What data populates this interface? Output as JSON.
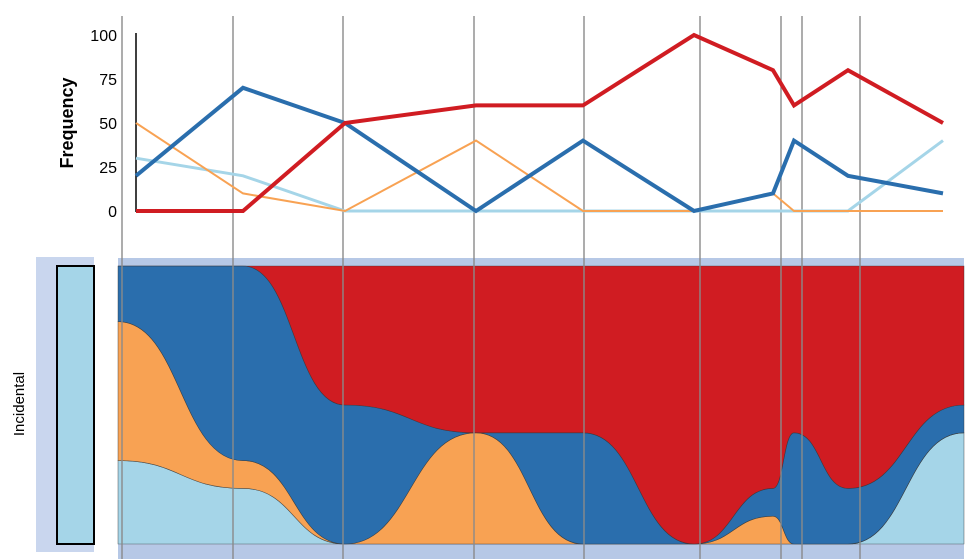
{
  "chart_data": {
    "type": "line",
    "ylabel": "Frequency",
    "yticks": [
      0,
      25,
      50,
      75,
      100
    ],
    "ylim": [
      0,
      100
    ],
    "x": [
      0,
      1,
      2,
      3,
      4,
      5,
      5.7,
      5.8,
      6.3,
      7
    ],
    "series": [
      {
        "color": "#d01c22",
        "values": [
          0,
          0,
          50,
          60,
          60,
          100,
          80,
          60,
          80,
          50
        ]
      },
      {
        "color": "#2a6ead",
        "values": [
          20,
          70,
          50,
          0,
          40,
          0,
          10,
          40,
          20,
          10
        ]
      },
      {
        "color": "#f8a253",
        "values": [
          50,
          10,
          0,
          40,
          0,
          0,
          10,
          0,
          0,
          0
        ]
      },
      {
        "color": "#a5d5e8",
        "values": [
          30,
          20,
          0,
          0,
          0,
          0,
          0,
          0,
          0,
          40
        ]
      }
    ],
    "grid_x": true,
    "stream_label": "Incidental"
  }
}
